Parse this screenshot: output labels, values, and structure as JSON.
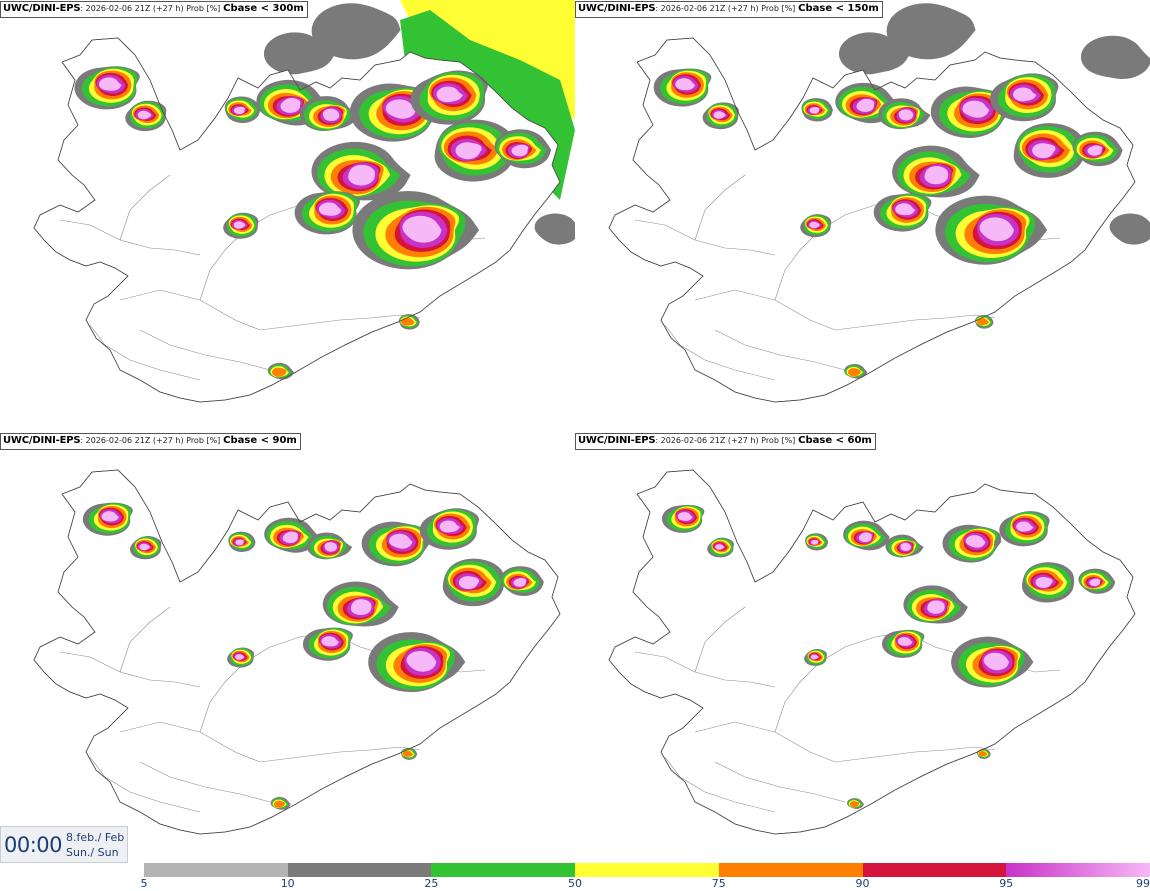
{
  "panels": [
    {
      "model": "UWC/DINI-EPS",
      "meta": ": 2026-02-06 21Z (+27 h) Prob [%]",
      "var": "Cbase < 300m",
      "level": 4
    },
    {
      "model": "UWC/DINI-EPS",
      "meta": ": 2026-02-06 21Z (+27 h) Prob [%]",
      "var": "Cbase < 150m",
      "level": 3
    },
    {
      "model": "UWC/DINI-EPS",
      "meta": ": 2026-02-06 21Z (+27 h) Prob [%]",
      "var": "Cbase < 90m",
      "level": 2
    },
    {
      "model": "UWC/DINI-EPS",
      "meta": ": 2026-02-06 21Z (+27 h) Prob [%]",
      "var": "Cbase < 60m",
      "level": 1
    }
  ],
  "valid_time": {
    "time": "00:00",
    "date_line1": "8.feb./ Feb",
    "date_line2": "Sun./ Sun"
  },
  "legend": {
    "ticks": [
      "5",
      "10",
      "25",
      "50",
      "75",
      "90",
      "95",
      "99"
    ],
    "colors": [
      "#b4b4b4",
      "#7a7a7a",
      "#33c233",
      "#ffff33",
      "#ff7f00",
      "#d4143c",
      "#c832c8",
      "#f7b8f7"
    ]
  },
  "colors": {
    "land_outline": "#666666",
    "road": "#8c8c8c",
    "title_text": "#1c3f73"
  }
}
